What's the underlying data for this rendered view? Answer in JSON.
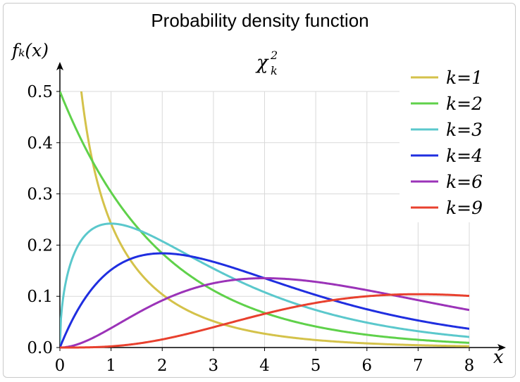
{
  "header": {
    "title": "Probability density function"
  },
  "chart_data": {
    "type": "line",
    "title": "χ²ₖ",
    "title_main": "χ",
    "title_sup": "2",
    "title_sub": "k",
    "ylabel": "fₖ(x)",
    "xlabel": "x",
    "xlim": [
      0,
      8
    ],
    "ylim": [
      0,
      0.5
    ],
    "xticks": [
      0,
      1,
      2,
      3,
      4,
      5,
      6,
      7,
      8
    ],
    "yticks": [
      0.0,
      0.1,
      0.2,
      0.3,
      0.4,
      0.5
    ],
    "ytick_labels": [
      "0.0",
      "0.1",
      "0.2",
      "0.3",
      "0.4",
      "0.5"
    ],
    "xtick_labels": [
      "0",
      "1",
      "2",
      "3",
      "4",
      "5",
      "6",
      "7",
      "8"
    ],
    "grid": true,
    "legend": "top-right",
    "x": [
      0,
      0.5,
      1,
      1.5,
      2,
      2.5,
      3,
      3.5,
      4,
      4.5,
      5,
      5.5,
      6,
      6.5,
      7,
      7.5,
      8
    ],
    "series": [
      {
        "name": "k=1",
        "k": 1,
        "color": "#d4c24a",
        "values": [
          null,
          0.4394,
          0.242,
          0.1542,
          0.1038,
          0.0719,
          0.0514,
          0.0367,
          0.027,
          0.0199,
          0.0146,
          0.0108,
          0.0081,
          0.006,
          0.0045,
          0.0034,
          0.0025
        ]
      },
      {
        "name": "k=2",
        "k": 2,
        "color": "#5fd14a",
        "values": [
          0.5,
          0.3894,
          0.3033,
          0.2362,
          0.1839,
          0.1433,
          0.1116,
          0.0869,
          0.0677,
          0.0527,
          0.041,
          0.032,
          0.0249,
          0.0194,
          0.0151,
          0.0118,
          0.0092
        ]
      },
      {
        "name": "k=3",
        "k": 3,
        "color": "#5bc8cc",
        "values": [
          0,
          0.2197,
          0.242,
          0.2313,
          0.2076,
          0.1797,
          0.1542,
          0.1285,
          0.108,
          0.0894,
          0.0732,
          0.0594,
          0.0483,
          0.039,
          0.0314,
          0.0253,
          0.0203
        ]
      },
      {
        "name": "k=4",
        "k": 4,
        "color": "#1f2ee0",
        "values": [
          0,
          0.0974,
          0.1516,
          0.1771,
          0.1839,
          0.1791,
          0.1673,
          0.1521,
          0.1353,
          0.1186,
          0.1026,
          0.0879,
          0.0747,
          0.063,
          0.0528,
          0.0441,
          0.0366
        ]
      },
      {
        "name": "k=6",
        "k": 6,
        "color": "#9b33b8",
        "values": [
          0,
          0.0122,
          0.0379,
          0.0664,
          0.092,
          0.1119,
          0.1255,
          0.1332,
          0.1353,
          0.1334,
          0.1283,
          0.1209,
          0.112,
          0.1024,
          0.0925,
          0.0827,
          0.0733
        ]
      },
      {
        "name": "k=9",
        "k": 9,
        "color": "#e8402e",
        "values": [
          0,
          0.0009,
          0.0061,
          0.0172,
          0.0332,
          0.0518,
          0.0706,
          0.0873,
          0.1002,
          0.1082,
          0.111,
          0.1102,
          0.1067,
          0.1022,
          0.0967,
          0.0913,
          0.0856
        ]
      }
    ]
  }
}
